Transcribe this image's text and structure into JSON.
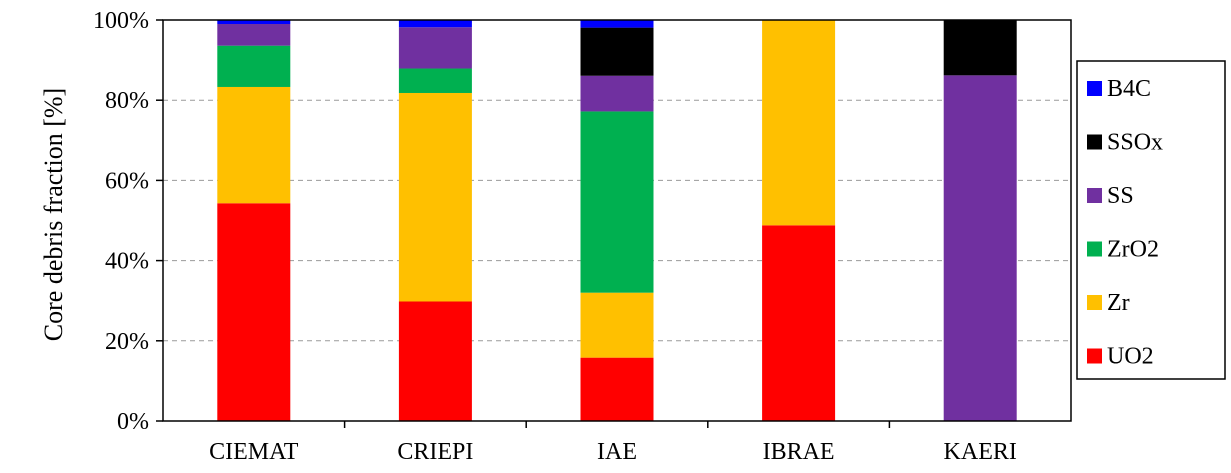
{
  "chart_data": {
    "type": "bar",
    "stacked": true,
    "normalized_percent": true,
    "ylabel": "Core debris fraction [%]",
    "xlabel": "",
    "ylim": [
      0,
      100
    ],
    "y_ticks": [
      "0%",
      "20%",
      "40%",
      "60%",
      "80%",
      "100%"
    ],
    "grid": {
      "horizontal": true,
      "style": "dashed"
    },
    "legend_position": "right",
    "categories": [
      "CIEMAT",
      "CRIEPI",
      "IAE",
      "IBRAE",
      "KAERI"
    ],
    "series": [
      {
        "name": "UO2",
        "color": "#ff0000",
        "values": [
          54.3,
          29.8,
          15.8,
          48.8,
          0
        ]
      },
      {
        "name": "Zr",
        "color": "#ffc000",
        "values": [
          29.0,
          52.0,
          16.2,
          51.2,
          0
        ]
      },
      {
        "name": "ZrO2",
        "color": "#00b050",
        "values": [
          10.3,
          6.1,
          45.2,
          0,
          0
        ]
      },
      {
        "name": "SS",
        "color": "#7030a0",
        "values": [
          5.4,
          10.3,
          8.9,
          0,
          86.2
        ]
      },
      {
        "name": "SSOx",
        "color": "#000000",
        "values": [
          0,
          0,
          12.0,
          0,
          13.8
        ]
      },
      {
        "name": "B4C",
        "color": "#0000ff",
        "values": [
          1.0,
          1.8,
          1.9,
          0,
          0
        ]
      }
    ],
    "legend_order": [
      "B4C",
      "SSOx",
      "SS",
      "ZrO2",
      "Zr",
      "UO2"
    ]
  }
}
